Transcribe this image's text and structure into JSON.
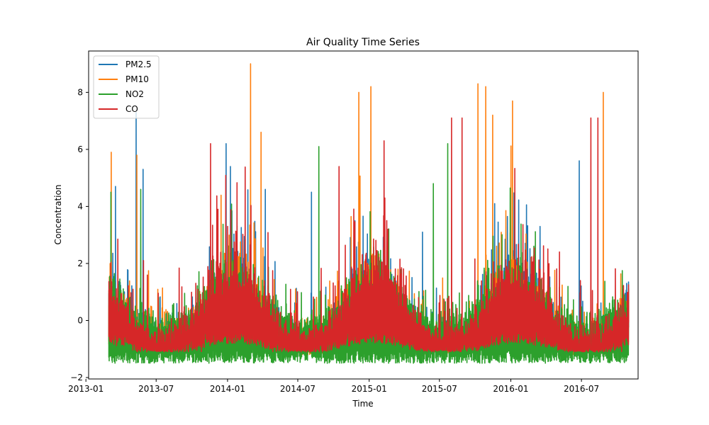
{
  "chart_data": {
    "type": "line",
    "title": "Air Quality Time Series",
    "xlabel": "Time",
    "ylabel": "Concentration",
    "xlim": [
      "2013-01-08",
      "2016-11-24"
    ],
    "ylim": [
      -2.05,
      9.45
    ],
    "x_ticks": [
      "2013-01",
      "2013-07",
      "2014-01",
      "2014-07",
      "2015-01",
      "2015-07",
      "2016-01",
      "2016-07"
    ],
    "y_ticks": [
      -2,
      0,
      2,
      4,
      6,
      8
    ],
    "x_range_data": [
      "2013-03-01",
      "2016-10-30"
    ],
    "grid": false,
    "legend_position": "upper left",
    "series": [
      {
        "name": "PM2.5",
        "color": "#1f77b4",
        "peaks": [
          {
            "x": "2013-03-18",
            "y": 4.7
          },
          {
            "x": "2013-05-10",
            "y": 7.3
          },
          {
            "x": "2013-05-28",
            "y": 5.3
          },
          {
            "x": "2013-12-28",
            "y": 6.2
          },
          {
            "x": "2014-01-08",
            "y": 5.4
          },
          {
            "x": "2014-04-08",
            "y": 4.6
          },
          {
            "x": "2014-08-05",
            "y": 4.5
          },
          {
            "x": "2014-11-25",
            "y": 3.5
          },
          {
            "x": "2015-05-18",
            "y": 3.1
          },
          {
            "x": "2015-11-20",
            "y": 4.1
          },
          {
            "x": "2016-06-25",
            "y": 5.6
          }
        ]
      },
      {
        "name": "PM10",
        "color": "#ff7f0e",
        "peaks": [
          {
            "x": "2013-03-07",
            "y": 5.9
          },
          {
            "x": "2013-05-12",
            "y": 5.8
          },
          {
            "x": "2014-03-01",
            "y": 9.0
          },
          {
            "x": "2014-03-28",
            "y": 6.6
          },
          {
            "x": "2014-12-05",
            "y": 8.0
          },
          {
            "x": "2015-01-05",
            "y": 8.2
          },
          {
            "x": "2015-10-08",
            "y": 8.3
          },
          {
            "x": "2015-10-28",
            "y": 8.2
          },
          {
            "x": "2015-11-15",
            "y": 7.2
          },
          {
            "x": "2016-01-05",
            "y": 7.7
          },
          {
            "x": "2016-08-26",
            "y": 8.0
          }
        ]
      },
      {
        "name": "NO2",
        "color": "#2ca02c",
        "peaks": [
          {
            "x": "2013-03-06",
            "y": 4.5
          },
          {
            "x": "2013-05-22",
            "y": 4.6
          },
          {
            "x": "2014-08-24",
            "y": 6.1
          },
          {
            "x": "2015-07-22",
            "y": 6.2
          },
          {
            "x": "2015-06-15",
            "y": 4.8
          }
        ],
        "typical_min": -1.5
      },
      {
        "name": "CO",
        "color": "#d62728",
        "peaks": [
          {
            "x": "2013-11-18",
            "y": 6.2
          },
          {
            "x": "2014-01-01",
            "y": 3.3
          },
          {
            "x": "2014-10-15",
            "y": 5.4
          },
          {
            "x": "2015-02-08",
            "y": 6.3
          },
          {
            "x": "2015-08-01",
            "y": 7.1
          },
          {
            "x": "2015-08-28",
            "y": 7.1
          },
          {
            "x": "2016-07-25",
            "y": 7.1
          },
          {
            "x": "2016-08-12",
            "y": 7.1
          }
        ]
      }
    ]
  }
}
